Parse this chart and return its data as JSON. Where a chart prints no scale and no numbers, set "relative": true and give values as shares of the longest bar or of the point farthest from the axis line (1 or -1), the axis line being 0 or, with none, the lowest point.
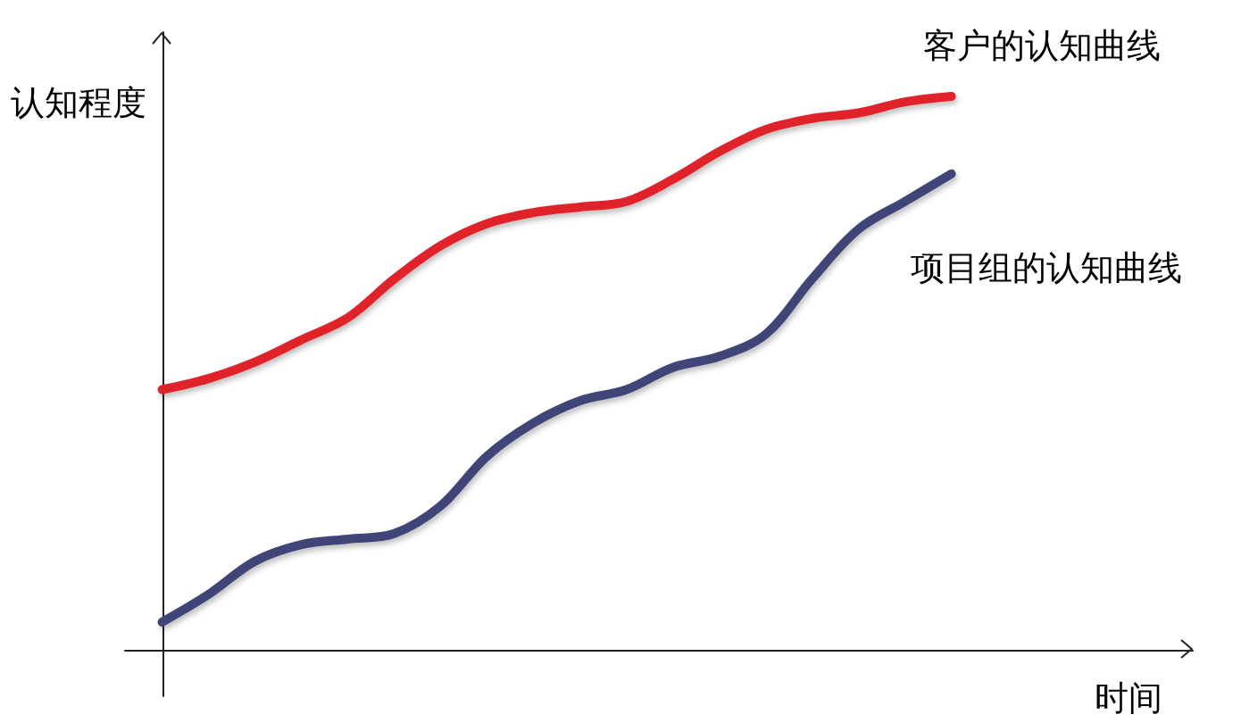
{
  "chart_data": {
    "type": "line",
    "xlabel": "时间",
    "ylabel": "认知程度",
    "relative": true,
    "categories": [
      null,
      null,
      null,
      null,
      null,
      null,
      null,
      null,
      null,
      null,
      null,
      null,
      null,
      null,
      null,
      null,
      null,
      null
    ],
    "series": [
      {
        "name": "客户的认知曲线",
        "color": "#e0242c",
        "values": [
          0.47,
          0.49,
          0.52,
          0.56,
          0.6,
          0.67,
          0.73,
          0.77,
          0.79,
          0.8,
          0.81,
          0.85,
          0.9,
          0.94,
          0.96,
          0.97,
          0.99,
          1
        ]
      },
      {
        "name": "项目组的认知曲线",
        "color": "#3f4577",
        "values": [
          0.05,
          0.1,
          0.16,
          0.19,
          0.2,
          0.21,
          0.26,
          0.35,
          0.41,
          0.45,
          0.47,
          0.51,
          0.53,
          0.57,
          0.67,
          0.76,
          0.81,
          0.86
        ]
      }
    ]
  }
}
